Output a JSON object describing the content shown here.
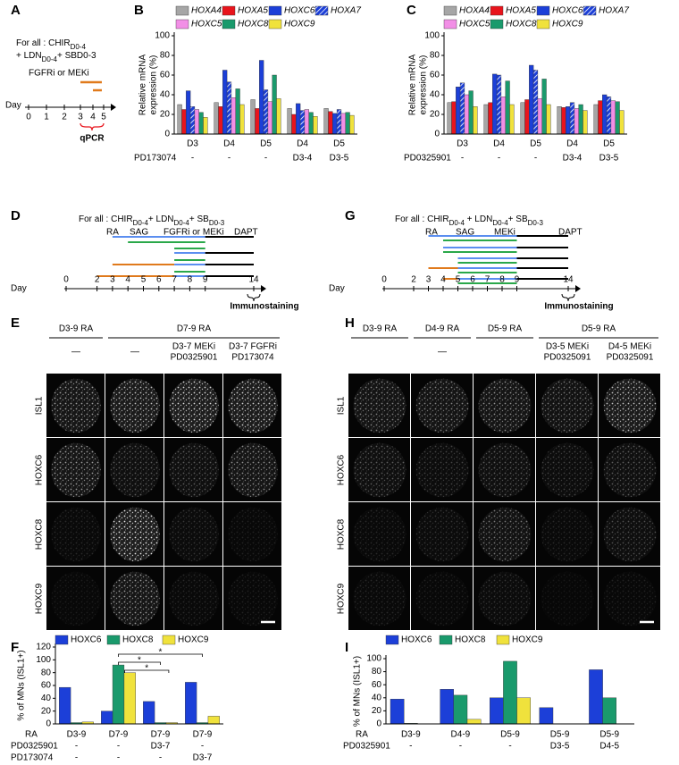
{
  "panels": {
    "A": {
      "label": "A",
      "condition": [
        [
          "For all : CHIR",
          "D0-4"
        ],
        [
          "+ LDN",
          "D0-4",
          "+ SBD0-3"
        ]
      ],
      "treatment": "FGFRi or MEKi",
      "axis_label": "Day",
      "days": [
        0,
        1,
        2,
        3,
        4,
        5
      ],
      "readout": "qPCR"
    },
    "D": {
      "label": "D",
      "condition": [
        "For all : CHIR",
        "D0-4",
        "+ LDN",
        "D0-4",
        "+ SB",
        "D0-3"
      ],
      "signals": [
        "RA",
        "SAG",
        "FGFRi or MEKi",
        "DAPT"
      ],
      "axis_label": "Day",
      "days": [
        0,
        2,
        3,
        4,
        5,
        6,
        7,
        8,
        9,
        14
      ],
      "readout": "Immunostaining"
    },
    "G": {
      "label": "G",
      "condition": [
        "For all : CHIR",
        "D0-4",
        " + LDN",
        "D0-4",
        "+ SB",
        "D0-3"
      ],
      "signals": [
        "RA",
        "SAG",
        "MEKi",
        "DAPT"
      ],
      "axis_label": "Day",
      "days": [
        0,
        2,
        3,
        4,
        5,
        6,
        7,
        8,
        9,
        14
      ],
      "readout": "Immunostaining"
    },
    "E": {
      "label": "E",
      "groups": [
        {
          "text": "D3-9 RA",
          "span": 1
        },
        {
          "text": "D7-9 RA",
          "span": 3
        }
      ],
      "conditions": [
        [
          "—"
        ],
        [
          "—"
        ],
        [
          "D3-7 MEKi",
          "PD0325901"
        ],
        [
          "D3-7 FGFRi",
          "PD173074"
        ]
      ],
      "rows": [
        "ISL1",
        "HOXC6",
        "HOXC8",
        "HOXC9"
      ]
    },
    "H": {
      "label": "H",
      "groups": [
        {
          "text": "D3-9 RA",
          "span": 1
        },
        {
          "text": "D4-9 RA",
          "span": 1
        },
        {
          "text": "D5-9 RA",
          "span": 1
        },
        {
          "text": "D5-9 RA",
          "span": 2
        }
      ],
      "conditions": [
        null,
        [
          "—"
        ],
        null,
        [
          "D3-5 MEKi",
          "PD0325091"
        ],
        [
          "D4-5 MEKi",
          "PD0325091"
        ]
      ],
      "rows": [
        "ISL1",
        "HOXC6",
        "HOXC8",
        "HOXC9"
      ]
    }
  },
  "chart_data": [
    {
      "type": "bar",
      "panel": "B",
      "ylabel": [
        "Relative mRNA",
        "expression (%)"
      ],
      "ylim": [
        0,
        100
      ],
      "yticks": [
        0,
        20,
        40,
        60,
        80,
        100
      ],
      "legend_italic": true,
      "categories": [
        "D3",
        "D4",
        "D5",
        "D4",
        "D5"
      ],
      "rows": [
        {
          "label": "PD173074",
          "values": [
            "-",
            "-",
            "-",
            "D3-4",
            "D3-5"
          ]
        }
      ],
      "series": [
        {
          "name": "HOXA4",
          "color": "#a6a6a6",
          "values": [
            30,
            32,
            35,
            26,
            26
          ]
        },
        {
          "name": "HOXA5",
          "color": "#e8141c",
          "values": [
            25,
            28,
            26,
            20,
            23
          ]
        },
        {
          "name": "HOXC6",
          "color": "#1c3fd8",
          "values": [
            44,
            65,
            75,
            31,
            21
          ]
        },
        {
          "name": "HOXA7",
          "color": "#1c3fd8",
          "pattern": "hatch",
          "values": [
            28,
            53,
            45,
            24,
            25
          ]
        },
        {
          "name": "HOXC5",
          "color": "#f28fe6",
          "values": [
            25,
            37,
            33,
            25,
            21
          ]
        },
        {
          "name": "HOXC8",
          "color": "#1a9a6c",
          "values": [
            22,
            46,
            60,
            22,
            22
          ]
        },
        {
          "name": "HOXC9",
          "color": "#f0e23c",
          "values": [
            17,
            30,
            36,
            18,
            19
          ]
        }
      ]
    },
    {
      "type": "bar",
      "panel": "C",
      "ylabel": [
        "Relative mRNA",
        "expression (%)"
      ],
      "ylim": [
        0,
        100
      ],
      "yticks": [
        0,
        20,
        40,
        60,
        80,
        100
      ],
      "legend_italic": true,
      "categories": [
        "D3",
        "D4",
        "D5",
        "D4",
        "D5"
      ],
      "rows": [
        {
          "label": "PD0325901",
          "values": [
            "-",
            "-",
            "-",
            "D3-4",
            "D3-5"
          ]
        }
      ],
      "series": [
        {
          "name": "HOXA4",
          "color": "#a6a6a6",
          "values": [
            32,
            30,
            32,
            28,
            30
          ]
        },
        {
          "name": "HOXA5",
          "color": "#e8141c",
          "values": [
            33,
            32,
            35,
            27,
            34
          ]
        },
        {
          "name": "HOXC6",
          "color": "#1c3fd8",
          "values": [
            48,
            61,
            70,
            28,
            40
          ]
        },
        {
          "name": "HOXA7",
          "color": "#1c3fd8",
          "pattern": "hatch",
          "values": [
            52,
            60,
            65,
            32,
            38
          ]
        },
        {
          "name": "HOXC5",
          "color": "#f28fe6",
          "values": [
            40,
            38,
            36,
            26,
            34
          ]
        },
        {
          "name": "HOXC8",
          "color": "#1a9a6c",
          "values": [
            44,
            54,
            56,
            30,
            33
          ]
        },
        {
          "name": "HOXC9",
          "color": "#f0e23c",
          "values": [
            28,
            30,
            30,
            24,
            24
          ]
        }
      ]
    },
    {
      "type": "bar",
      "panel": "F",
      "ylabel": [
        "% of MNs (ISL1+)"
      ],
      "ylim": [
        0,
        120
      ],
      "yticks": [
        0,
        20,
        40,
        60,
        80,
        100,
        120
      ],
      "legend_italic": false,
      "category_label": "RA",
      "categories": [
        "D3-9",
        "D7-9",
        "D7-9",
        "D7-9"
      ],
      "rows": [
        {
          "label": "PD0325901",
          "values": [
            "-",
            "-",
            "D3-7",
            "-"
          ]
        },
        {
          "label": "PD173074",
          "values": [
            "-",
            "-",
            "-",
            "D3-7"
          ]
        }
      ],
      "annotations": [
        "*",
        "*",
        "*"
      ],
      "series": [
        {
          "name": "HOXC6",
          "color": "#1c3fd8",
          "values": [
            57,
            20,
            35,
            65
          ]
        },
        {
          "name": "HOXC8",
          "color": "#1a9a6c",
          "values": [
            2,
            92,
            2,
            2
          ]
        },
        {
          "name": "HOXC9",
          "color": "#f0e23c",
          "values": [
            3,
            80,
            2,
            12
          ]
        }
      ]
    },
    {
      "type": "bar",
      "panel": "I",
      "ylabel": [
        "% of MNs (ISL1+)"
      ],
      "ylim": [
        0,
        100
      ],
      "yticks": [
        0,
        20,
        40,
        60,
        80,
        100
      ],
      "legend_italic": false,
      "category_label": "RA",
      "categories": [
        "D3-9",
        "D4-9",
        "D5-9",
        "D5-9",
        "D5-9"
      ],
      "rows": [
        {
          "label": "PD0325901",
          "values": [
            "-",
            "-",
            "-",
            "D3-5",
            "D4-5"
          ]
        }
      ],
      "series": [
        {
          "name": "HOXC6",
          "color": "#1c3fd8",
          "values": [
            38,
            53,
            40,
            25,
            83
          ]
        },
        {
          "name": "HOXC8",
          "color": "#1a9a6c",
          "values": [
            1,
            44,
            96,
            0,
            40
          ]
        },
        {
          "name": "HOXC9",
          "color": "#f0e23c",
          "values": [
            0,
            7,
            40,
            0,
            0
          ]
        }
      ]
    }
  ]
}
